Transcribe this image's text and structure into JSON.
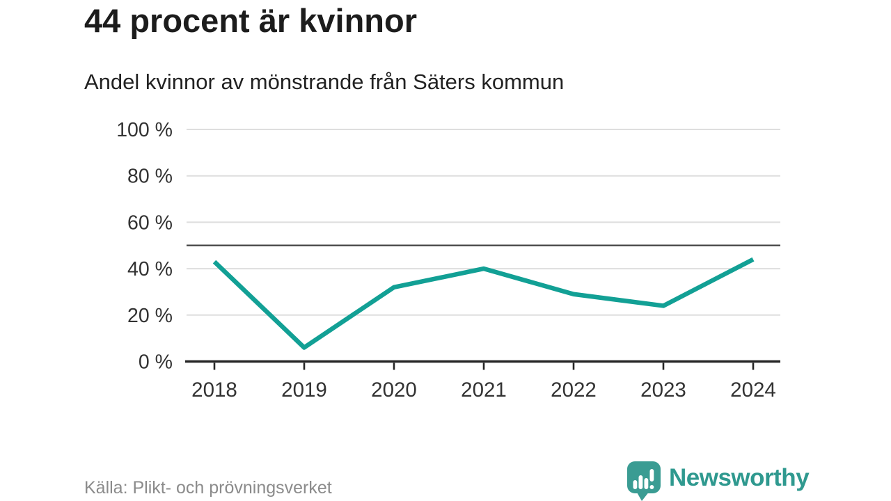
{
  "header": {
    "title": "44 procent är kvinnor",
    "subtitle": "Andel kvinnor av mönstrande från Säters kommun"
  },
  "chart_data": {
    "type": "line",
    "x": [
      "2018",
      "2019",
      "2020",
      "2021",
      "2022",
      "2023",
      "2024"
    ],
    "series": [
      {
        "name": "Andel kvinnor av mönstrande",
        "values": [
          43,
          6,
          32,
          40,
          29,
          24,
          44
        ]
      }
    ],
    "unit": "%",
    "ylim": [
      0,
      100
    ],
    "yticks": [
      0,
      20,
      40,
      60,
      80,
      100
    ],
    "ytick_suffix": " %",
    "reference_line": 50,
    "grid": true,
    "legend": "none",
    "title": "44 procent är kvinnor",
    "xlabel": "",
    "ylabel": ""
  },
  "footer": {
    "source": "Källa: Plikt- och prövningsverket",
    "brand": "Newsworthy"
  },
  "colors": {
    "line": "#12a095",
    "gridline": "#dedede",
    "reference_line": "#4e4e4e",
    "axis": "#252525",
    "tick_label": "#333333",
    "title_text": "#1c1c1c",
    "source_text": "#8b8b8b",
    "brand_teal": "#2f998f",
    "logo_bubble": "#3a9c93",
    "background": "#ffffff"
  }
}
